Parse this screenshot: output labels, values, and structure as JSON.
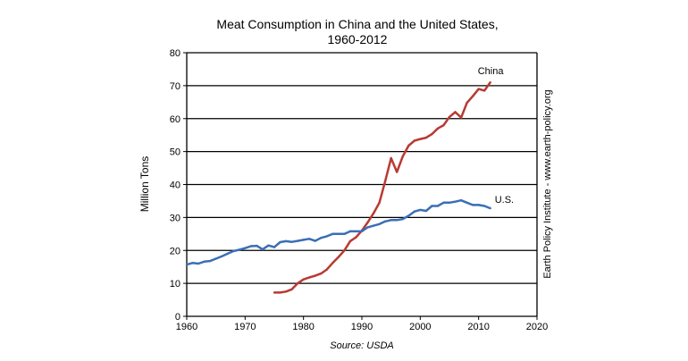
{
  "chart_data": {
    "type": "line",
    "title": "Meat Consumption in China and the United States,",
    "subtitle": "1960-2012",
    "xlabel": "",
    "ylabel": "Million Tons",
    "source": "Source: USDA",
    "side_note": "Earth Policy Institute - www.earth-policy.org",
    "xlim": [
      1960,
      2020
    ],
    "ylim": [
      0,
      80
    ],
    "xticks": [
      1960,
      1970,
      1980,
      1990,
      2000,
      2010,
      2020
    ],
    "yticks": [
      0,
      10,
      20,
      30,
      40,
      50,
      60,
      70,
      80
    ],
    "grid": "horizontal",
    "series": [
      {
        "name": "China",
        "color": "#b83a32",
        "x": [
          1975,
          1976,
          1977,
          1978,
          1979,
          1980,
          1981,
          1982,
          1983,
          1984,
          1985,
          1986,
          1987,
          1988,
          1989,
          1990,
          1991,
          1992,
          1993,
          1994,
          1995,
          1996,
          1997,
          1998,
          1999,
          2000,
          2001,
          2002,
          2003,
          2004,
          2005,
          2006,
          2007,
          2008,
          2009,
          2010,
          2011,
          2012
        ],
        "values": [
          7.2,
          7.2,
          7.5,
          8.2,
          10,
          11.2,
          11.8,
          12.3,
          13,
          14.2,
          16.2,
          18,
          20,
          22.8,
          24,
          26,
          28.5,
          31.3,
          34.5,
          41,
          48,
          43.8,
          48.5,
          51.8,
          53.3,
          53.8,
          54.2,
          55.3,
          57,
          58,
          60.5,
          62,
          60.3,
          64.8,
          66.8,
          69,
          68.5,
          71
        ]
      },
      {
        "name": "U.S.",
        "color": "#3a6fb5",
        "x": [
          1960,
          1961,
          1962,
          1963,
          1964,
          1965,
          1966,
          1967,
          1968,
          1969,
          1970,
          1971,
          1972,
          1973,
          1974,
          1975,
          1976,
          1977,
          1978,
          1979,
          1980,
          1981,
          1982,
          1983,
          1984,
          1985,
          1986,
          1987,
          1988,
          1989,
          1990,
          1991,
          1992,
          1993,
          1994,
          1995,
          1996,
          1997,
          1998,
          1999,
          2000,
          2001,
          2002,
          2003,
          2004,
          2005,
          2006,
          2007,
          2008,
          2009,
          2010,
          2011,
          2012
        ],
        "values": [
          15.7,
          16.2,
          16,
          16.6,
          16.8,
          17.5,
          18.2,
          19,
          19.8,
          20.2,
          20.7,
          21.3,
          21.4,
          20.3,
          21.5,
          21,
          22.5,
          22.8,
          22.6,
          22.9,
          23.2,
          23.5,
          22.9,
          23.8,
          24.3,
          25,
          25,
          25,
          25.8,
          25.8,
          25.8,
          27,
          27.5,
          28,
          28.8,
          29.2,
          29.2,
          29.5,
          30.5,
          31.8,
          32.3,
          32,
          33.5,
          33.5,
          34.5,
          34.5,
          34.8,
          35.2,
          34.5,
          33.8,
          33.8,
          33.5,
          32.8
        ]
      }
    ]
  }
}
